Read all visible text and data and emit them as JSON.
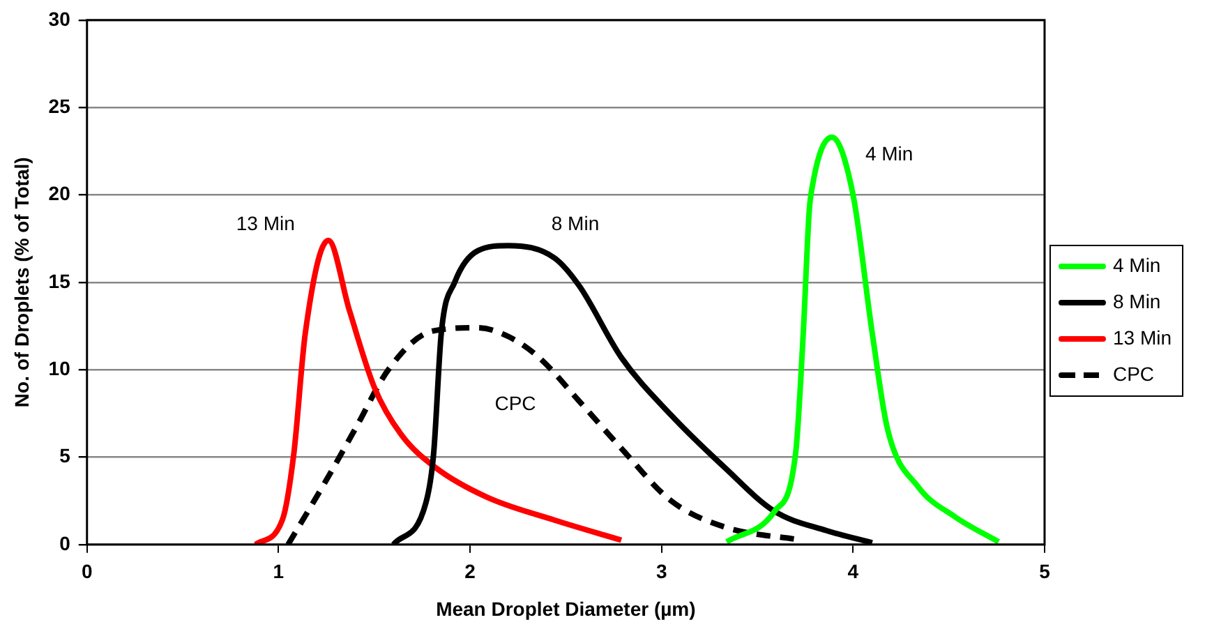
{
  "chart_data": {
    "type": "line",
    "xlabel": "Mean Droplet Diameter (µm)",
    "ylabel": "No. of Droplets (% of Total)",
    "xlim": [
      0,
      5
    ],
    "xticks": [
      0,
      1,
      2,
      3,
      4,
      5
    ],
    "ylim": [
      0,
      30
    ],
    "yticks": [
      0,
      5,
      10,
      15,
      20,
      25,
      30
    ],
    "grid": "y",
    "legend": "right",
    "marker": "none",
    "series": [
      {
        "name": "4 Min",
        "color": "#00ff00",
        "line_style": "solid",
        "x": [
          3.34,
          3.59,
          3.7,
          3.74,
          3.77,
          3.78,
          3.89,
          4.0,
          4.1,
          4.18,
          4.34,
          4.53,
          4.76
        ],
        "values": [
          0.15,
          1.9,
          5.2,
          12.1,
          18.9,
          20,
          23.3,
          20,
          12.1,
          6.6,
          3.3,
          1.6,
          0.15
        ]
      },
      {
        "name": "8 Min",
        "color": "#000000",
        "line_style": "solid",
        "x": [
          1.6,
          1.77,
          1.81,
          1.85,
          1.92,
          2.04,
          2.2,
          2.44,
          2.57,
          2.79,
          3.05,
          3.33,
          3.59,
          3.86,
          4.1
        ],
        "values": [
          0,
          2.4,
          5.2,
          12.1,
          15,
          16.8,
          17.1,
          16.4,
          14.8,
          10.7,
          7.4,
          4.4,
          1.9,
          0.8,
          0.1
        ]
      },
      {
        "name": "13 Min",
        "color": "#ff0000",
        "line_style": "solid",
        "x": [
          0.88,
          1.02,
          1.08,
          1.14,
          1.26,
          1.37,
          1.5,
          1.64,
          1.82,
          2.09,
          2.44,
          2.79
        ],
        "values": [
          0,
          1.4,
          5.2,
          12.1,
          17.4,
          13.4,
          9,
          6.3,
          4.4,
          2.7,
          1.4,
          0.25
        ]
      },
      {
        "name": "CPC",
        "color": "#000000",
        "line_style": "dashed",
        "x": [
          1.05,
          1.24,
          1.4,
          1.58,
          1.8,
          2.04,
          2.2,
          2.36,
          2.57,
          2.79,
          3.05,
          3.33,
          3.73
        ],
        "values": [
          0,
          3.5,
          6.6,
          10.1,
          12.2,
          12.4,
          11.9,
          10.7,
          8.2,
          5.5,
          2.5,
          1,
          0.25
        ]
      }
    ]
  }
}
